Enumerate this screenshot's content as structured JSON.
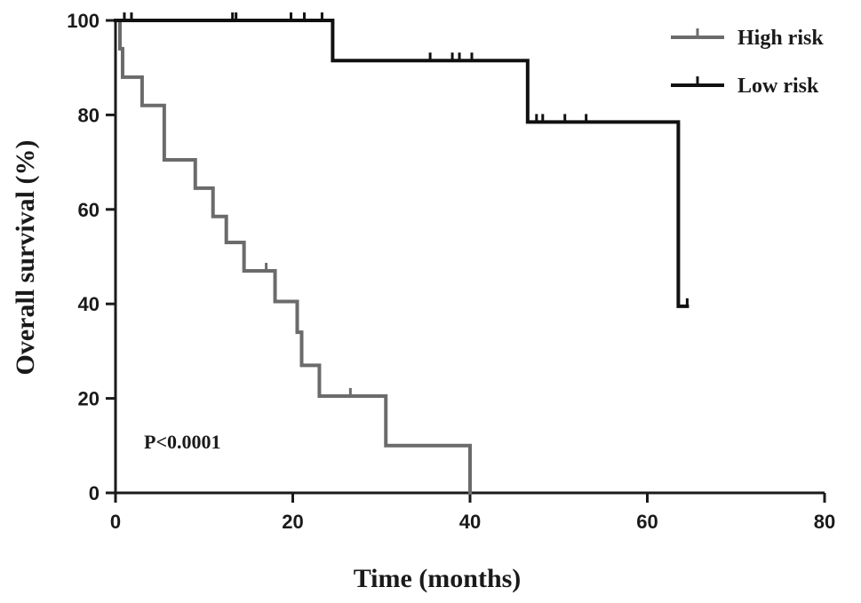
{
  "chart_data": {
    "type": "line",
    "subtype": "kaplan-meier-step",
    "xlabel": "Time (months)",
    "ylabel": "Overall survival (%)",
    "xlim": [
      0,
      80
    ],
    "ylim": [
      0,
      100
    ],
    "xticks": [
      0,
      20,
      40,
      60,
      80
    ],
    "yticks": [
      0,
      20,
      40,
      60,
      80,
      100
    ],
    "grid": false,
    "legend_position": "top-right",
    "annotation": "P<0.0001",
    "series": [
      {
        "name": "High risk",
        "color": "#6b6b6b",
        "steps": [
          [
            0,
            100
          ],
          [
            0.5,
            94
          ],
          [
            0.8,
            88
          ],
          [
            3,
            82
          ],
          [
            5.5,
            70.5
          ],
          [
            9,
            64.5
          ],
          [
            11,
            58.5
          ],
          [
            12.5,
            53
          ],
          [
            14.5,
            47
          ],
          [
            18,
            40.5
          ],
          [
            20.5,
            34
          ],
          [
            21,
            27
          ],
          [
            23,
            20.5
          ],
          [
            30.5,
            10
          ],
          [
            40,
            0
          ]
        ],
        "censored": [
          [
            17,
            47
          ],
          [
            26.5,
            20.5
          ]
        ]
      },
      {
        "name": "Low risk",
        "color": "#111111",
        "steps": [
          [
            0,
            100
          ],
          [
            24.5,
            91.5
          ],
          [
            46.5,
            78.5
          ],
          [
            63.5,
            39.5
          ],
          [
            64.5,
            39.5
          ]
        ],
        "censored": [
          [
            1,
            100
          ],
          [
            1.8,
            100
          ],
          [
            13.2,
            100
          ],
          [
            13.6,
            100
          ],
          [
            19.8,
            100
          ],
          [
            21.3,
            100
          ],
          [
            23.3,
            100
          ],
          [
            35.5,
            91.5
          ],
          [
            38,
            91.5
          ],
          [
            38.8,
            91.5
          ],
          [
            40.2,
            91.5
          ],
          [
            47.5,
            78.5
          ],
          [
            48.2,
            78.5
          ],
          [
            50.7,
            78.5
          ],
          [
            53.1,
            78.5
          ],
          [
            64.5,
            39.5
          ]
        ]
      }
    ]
  }
}
